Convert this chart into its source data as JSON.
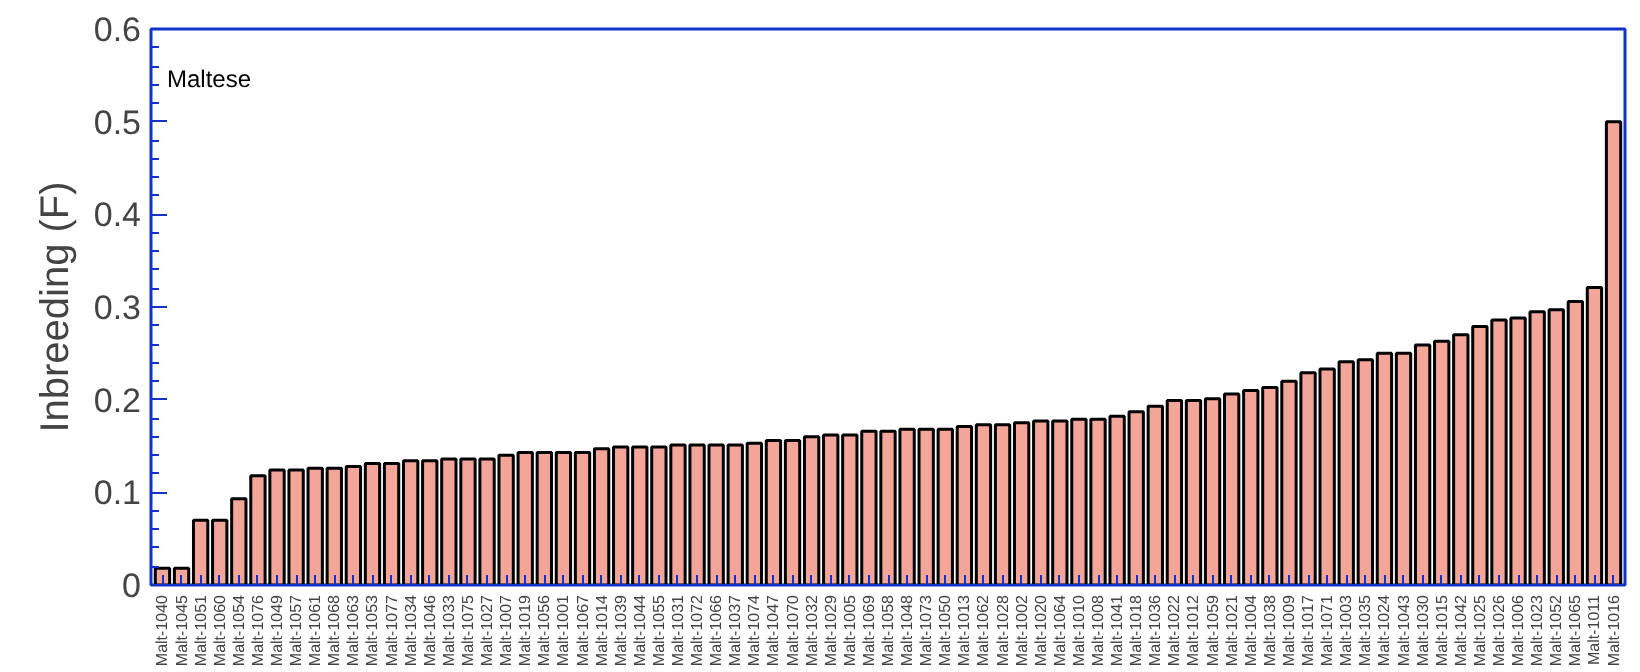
{
  "chart_data": {
    "type": "bar",
    "ylabel": "Inbreeding (F)",
    "annotations": [
      "Maltese"
    ],
    "categories": [
      "Malt-1040",
      "Malt-1045",
      "Malt-1051",
      "Malt-1060",
      "Malt-1054",
      "Malt-1076",
      "Malt-1049",
      "Malt-1057",
      "Malt-1061",
      "Malt-1068",
      "Malt-1063",
      "Malt-1053",
      "Malt-1077",
      "Malt-1034",
      "Malt-1046",
      "Malt-1033",
      "Malt-1075",
      "Malt-1027",
      "Malt-1007",
      "Malt-1019",
      "Malt-1056",
      "Malt-1001",
      "Malt-1067",
      "Malt-1014",
      "Malt-1039",
      "Malt-1044",
      "Malt-1055",
      "Malt-1031",
      "Malt-1072",
      "Malt-1066",
      "Malt-1037",
      "Malt-1074",
      "Malt-1047",
      "Malt-1070",
      "Malt-1032",
      "Malt-1029",
      "Malt-1005",
      "Malt-1069",
      "Malt-1058",
      "Malt-1048",
      "Malt-1073",
      "Malt-1050",
      "Malt-1013",
      "Malt-1062",
      "Malt-1028",
      "Malt-1002",
      "Malt-1020",
      "Malt-1064",
      "Malt-1010",
      "Malt-1008",
      "Malt-1041",
      "Malt-1018",
      "Malt-1036",
      "Malt-1022",
      "Malt-1012",
      "Malt-1059",
      "Malt-1021",
      "Malt-1004",
      "Malt-1038",
      "Malt-1009",
      "Malt-1017",
      "Malt-1071",
      "Malt-1003",
      "Malt-1035",
      "Malt-1024",
      "Malt-1043",
      "Malt-1030",
      "Malt-1015",
      "Malt-1042",
      "Malt-1025",
      "Malt-1026",
      "Malt-1006",
      "Malt-1023",
      "Malt-1052",
      "Malt-1065",
      "Malt-1011",
      "Malt-1016"
    ],
    "values": [
      0.018,
      0.018,
      0.07,
      0.07,
      0.093,
      0.118,
      0.124,
      0.124,
      0.126,
      0.126,
      0.128,
      0.131,
      0.131,
      0.134,
      0.134,
      0.136,
      0.136,
      0.136,
      0.14,
      0.143,
      0.143,
      0.143,
      0.143,
      0.147,
      0.149,
      0.149,
      0.149,
      0.151,
      0.151,
      0.151,
      0.151,
      0.153,
      0.156,
      0.156,
      0.16,
      0.162,
      0.162,
      0.166,
      0.166,
      0.168,
      0.168,
      0.168,
      0.171,
      0.173,
      0.173,
      0.175,
      0.177,
      0.177,
      0.179,
      0.179,
      0.182,
      0.187,
      0.193,
      0.199,
      0.199,
      0.201,
      0.206,
      0.21,
      0.213,
      0.22,
      0.229,
      0.233,
      0.241,
      0.243,
      0.25,
      0.25,
      0.259,
      0.263,
      0.27,
      0.279,
      0.286,
      0.288,
      0.295,
      0.297,
      0.306,
      0.321,
      0.5
    ],
    "color": "#f4a59a",
    "ylim": [
      0,
      0.6
    ],
    "yticks": [
      0,
      0.1,
      0.2,
      0.3,
      0.4,
      0.5,
      0.6
    ],
    "grid": false
  }
}
